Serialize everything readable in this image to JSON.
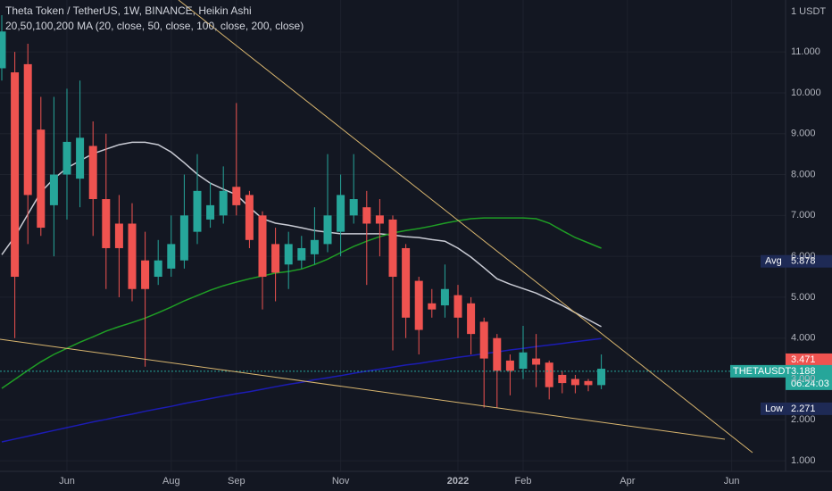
{
  "chart_data": {
    "type": "candlestick",
    "title": "Theta Token / TetherUS, 1W, BINANCE, Heikin Ashi",
    "subtitle": "20,50,100,200 MA (20, close, 50, close, 100, close, 200, close)",
    "currency": "1 USDT",
    "up_color": "#26a69a",
    "down_color": "#ef5350",
    "categories": [
      null,
      null,
      null,
      null,
      null,
      "Jun",
      null,
      null,
      null,
      null,
      null,
      null,
      null,
      "Aug",
      null,
      null,
      null,
      null,
      "Sep",
      null,
      null,
      null,
      null,
      null,
      null,
      null,
      "Nov",
      null,
      null,
      null,
      null,
      null,
      null,
      null,
      null,
      "2022",
      null,
      null,
      null,
      null,
      "Feb",
      null,
      null,
      null,
      null,
      null,
      null,
      null,
      "Apr",
      null,
      null,
      null,
      null,
      null,
      null,
      null,
      "Jun"
    ],
    "open": [
      10.6,
      10.5,
      10.7,
      9.1,
      7.25,
      8.0,
      7.9,
      8.7,
      7.4,
      6.8,
      6.8,
      5.9,
      5.5,
      5.7,
      5.9,
      6.6,
      6.9,
      7.0,
      7.7,
      7.5,
      7.0,
      6.3,
      5.8,
      5.9,
      6.05,
      6.3,
      6.6,
      7.0,
      7.2,
      7.0,
      6.9,
      6.2,
      5.4,
      4.85,
      4.8,
      5.05,
      4.85,
      4.4,
      4.0,
      3.45,
      3.25,
      3.5,
      3.4,
      3.1,
      3.0,
      2.95,
      2.85,
      null,
      null,
      null,
      null,
      null,
      null,
      null,
      null,
      null,
      null
    ],
    "high": [
      11.9,
      11.0,
      11.2,
      9.9,
      9.9,
      10.1,
      10.3,
      9.3,
      9.0,
      7.5,
      7.3,
      6.6,
      6.4,
      7.0,
      8.0,
      8.5,
      7.8,
      8.2,
      9.75,
      7.6,
      7.1,
      6.7,
      6.6,
      6.5,
      7.2,
      8.5,
      8.0,
      8.5,
      7.6,
      7.4,
      7.0,
      6.3,
      5.5,
      5.2,
      5.8,
      5.3,
      5.0,
      4.5,
      4.1,
      3.6,
      4.3,
      4.1,
      3.45,
      3.2,
      3.1,
      3.0,
      3.6,
      null,
      null,
      null,
      null,
      null,
      null,
      null,
      null,
      null,
      null
    ],
    "low": [
      10.3,
      4.0,
      6.3,
      6.5,
      6.0,
      6.9,
      7.2,
      6.5,
      5.2,
      5.0,
      4.9,
      3.3,
      5.3,
      5.5,
      5.7,
      6.3,
      6.7,
      6.8,
      7.0,
      6.2,
      4.7,
      4.9,
      5.2,
      5.7,
      5.8,
      6.1,
      6.0,
      6.8,
      5.3,
      6.0,
      3.7,
      4.0,
      3.6,
      4.5,
      4.5,
      4.0,
      3.6,
      2.3,
      2.3,
      2.6,
      3.0,
      2.8,
      2.5,
      2.65,
      2.65,
      2.7,
      2.75,
      null,
      null,
      null,
      null,
      null,
      null,
      null,
      null,
      null,
      null
    ],
    "close": [
      11.5,
      5.5,
      7.5,
      6.7,
      8.0,
      8.8,
      8.9,
      7.4,
      6.2,
      6.2,
      5.2,
      5.2,
      5.9,
      6.3,
      7.0,
      7.6,
      7.25,
      7.6,
      7.25,
      6.4,
      5.5,
      5.6,
      6.3,
      6.2,
      6.4,
      7.0,
      7.5,
      7.4,
      6.8,
      6.8,
      5.5,
      4.5,
      4.2,
      4.7,
      5.2,
      4.5,
      4.1,
      3.5,
      3.2,
      3.2,
      3.65,
      3.35,
      2.8,
      2.9,
      2.85,
      2.85,
      3.25,
      null,
      null,
      null,
      null,
      null,
      null,
      null,
      null,
      null,
      null
    ],
    "overlays": [
      {
        "color": "#c9cbd4",
        "values": [
          6.04,
          6.48,
          7.03,
          7.57,
          7.9,
          8.16,
          8.34,
          8.51,
          8.62,
          8.73,
          8.79,
          8.79,
          8.73,
          8.55,
          8.29,
          8.01,
          7.79,
          7.64,
          7.51,
          7.2,
          6.92,
          6.81,
          6.76,
          6.7,
          6.63,
          6.59,
          6.55,
          6.55,
          6.55,
          6.55,
          6.52,
          6.48,
          6.46,
          6.41,
          6.37,
          6.2,
          5.98,
          5.72,
          5.45,
          5.32,
          5.21,
          5.1,
          4.95,
          4.8,
          4.62,
          4.45,
          4.28,
          null,
          null,
          null,
          null,
          null,
          null,
          null,
          null,
          null,
          null
        ]
      },
      {
        "color": "#1f9e25",
        "values": [
          2.77,
          2.99,
          3.21,
          3.42,
          3.6,
          3.75,
          3.9,
          4.03,
          4.17,
          4.28,
          4.38,
          4.49,
          4.62,
          4.76,
          4.91,
          5.04,
          5.17,
          5.28,
          5.37,
          5.45,
          5.52,
          5.59,
          5.63,
          5.69,
          5.8,
          5.93,
          6.09,
          6.24,
          6.37,
          6.48,
          6.57,
          6.63,
          6.68,
          6.74,
          6.81,
          6.87,
          6.92,
          6.94,
          6.94,
          6.94,
          6.94,
          6.92,
          6.81,
          6.63,
          6.46,
          6.33,
          6.2,
          null,
          null,
          null,
          null,
          null,
          null,
          null,
          null,
          null,
          null
        ]
      },
      {
        "color": "#1c1cb4",
        "values": [
          1.46,
          1.53,
          1.6,
          1.67,
          1.74,
          1.81,
          1.88,
          1.95,
          2.01,
          2.08,
          2.14,
          2.21,
          2.27,
          2.33,
          2.4,
          2.46,
          2.52,
          2.58,
          2.64,
          2.69,
          2.75,
          2.81,
          2.87,
          2.92,
          2.98,
          3.03,
          3.08,
          3.14,
          3.19,
          3.24,
          3.29,
          3.34,
          3.38,
          3.43,
          3.48,
          3.53,
          3.57,
          3.62,
          3.66,
          3.71,
          3.75,
          3.79,
          3.83,
          3.87,
          3.91,
          3.95,
          3.99,
          null,
          null,
          null,
          null,
          null,
          null,
          null,
          null,
          null,
          null
        ]
      }
    ],
    "ylim": [
      0.74,
      12.27
    ],
    "yticks": [
      {
        "value": 1,
        "label": "1.000"
      },
      {
        "value": 2,
        "label": "2.000"
      },
      {
        "value": 3,
        "label": "3.000"
      },
      {
        "value": 4,
        "label": "4.000"
      },
      {
        "value": 5,
        "label": "5.000"
      },
      {
        "value": 6,
        "label": "6.000"
      },
      {
        "value": 7,
        "label": "7.000"
      },
      {
        "value": 8,
        "label": "8.000"
      },
      {
        "value": 9,
        "label": "9.000"
      },
      {
        "value": 10,
        "label": "10.000"
      },
      {
        "value": 11,
        "label": "11.000"
      }
    ],
    "grid": true,
    "price_markers": [
      {
        "name": "Avg",
        "value": 5.878,
        "color": "#1e2a55"
      },
      {
        "value": 3.471,
        "color": "#ef5350"
      },
      {
        "name": "THETAUSDT",
        "value": 3.188,
        "color": "#26a69a",
        "countdown": "06:24:03"
      },
      {
        "name": "Low",
        "value": 2.271,
        "color": "#1e2a55"
      }
    ]
  }
}
